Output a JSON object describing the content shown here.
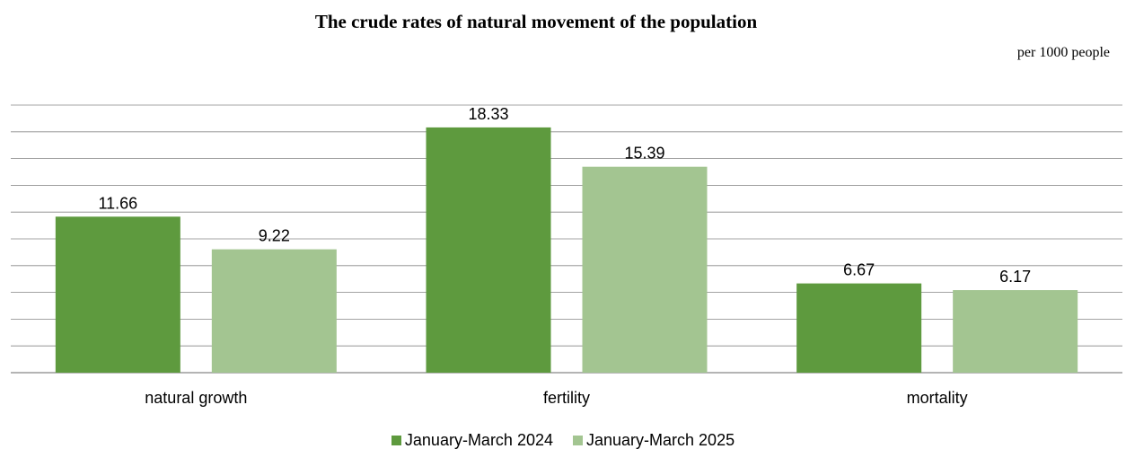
{
  "chart_data": {
    "type": "bar",
    "title": "The crude rates of natural movement of the population",
    "unit_note": "per 1000 people",
    "categories": [
      "natural growth",
      "fertility",
      "mortality"
    ],
    "series": [
      {
        "name": "January-March 2024",
        "values": [
          11.66,
          18.33,
          6.67
        ],
        "color": "#5e9a3e"
      },
      {
        "name": "January-March 2025",
        "values": [
          9.22,
          15.39,
          6.17
        ],
        "color": "#a3c591"
      }
    ],
    "ylim": [
      0,
      20
    ],
    "grid": true,
    "legend_position": "bottom",
    "gridline_color": "#868686"
  }
}
